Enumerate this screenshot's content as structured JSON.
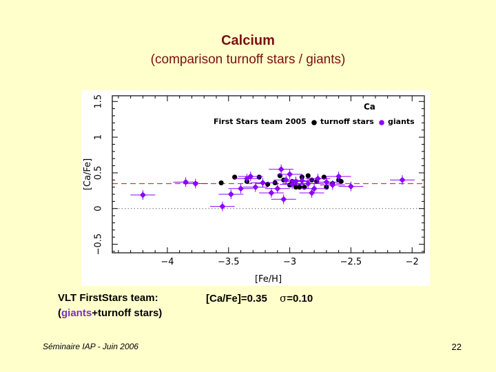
{
  "slide": {
    "title": "Calcium",
    "subtitle": "(comparison  turnoff stars / giants)",
    "footer_left": "Séminaire IAP -   Juin 2006",
    "page_number": "22"
  },
  "caption": {
    "line1_left": "VLT   FirstStars team:",
    "line1_right_a": "[Ca/Fe]=0.35",
    "sigma_symbol": "σ",
    "line1_right_b": "=0.10",
    "line2_open": "(",
    "line2_giants": "giants",
    "line2_rest": "+turnoff stars)"
  },
  "colors": {
    "background": "#FFFFCC",
    "title": "#7A1010",
    "giants": "#8B00FF",
    "turnoff": "#000000",
    "mean_line": "#E03030"
  },
  "chart_data": {
    "type": "scatter",
    "element_label": "Ca",
    "legend_title": "First Stars team 2005",
    "legend_placement": "top-right",
    "xlabel": "[Fe/H]",
    "ylabel": "[Ca/Fe]",
    "xlim": [
      -4.45,
      -1.9
    ],
    "ylim": [
      -0.62,
      1.58
    ],
    "xticks": [
      -4,
      -3.5,
      -3,
      -2.5,
      -2
    ],
    "xtick_labels": [
      "−4",
      "−3.5",
      "−3",
      "−2.5",
      "−2"
    ],
    "yticks": [
      -0.5,
      0,
      0.5,
      1,
      1.5
    ],
    "ytick_labels": [
      "−0.5",
      "0",
      "0.5",
      "1",
      "1.5"
    ],
    "mean_line": 0.35,
    "zero_line": 0,
    "series": [
      {
        "name": "turnoff stars",
        "color": "#000000",
        "points": [
          [
            -3.56,
            0.36
          ],
          [
            -3.45,
            0.44
          ],
          [
            -3.35,
            0.38
          ],
          [
            -3.25,
            0.44
          ],
          [
            -3.18,
            0.34
          ],
          [
            -3.12,
            0.36
          ],
          [
            -3.08,
            0.46
          ],
          [
            -3.05,
            0.4
          ],
          [
            -3.0,
            0.33
          ],
          [
            -2.98,
            0.38
          ],
          [
            -2.95,
            0.3
          ],
          [
            -2.92,
            0.3
          ],
          [
            -2.9,
            0.44
          ],
          [
            -2.88,
            0.3
          ],
          [
            -2.85,
            0.46
          ],
          [
            -2.82,
            0.4
          ],
          [
            -2.78,
            0.38
          ],
          [
            -2.72,
            0.44
          ],
          [
            -2.7,
            0.3
          ],
          [
            -2.65,
            0.35
          ],
          [
            -2.6,
            0.4
          ],
          [
            -2.58,
            0.38
          ]
        ]
      },
      {
        "name": "giants",
        "color": "#8B00FF",
        "points": [
          [
            -4.2,
            0.19
          ],
          [
            -3.85,
            0.37
          ],
          [
            -3.77,
            0.35
          ],
          [
            -3.55,
            0.03
          ],
          [
            -3.48,
            0.2
          ],
          [
            -3.4,
            0.28
          ],
          [
            -3.35,
            0.42
          ],
          [
            -3.32,
            0.45
          ],
          [
            -3.28,
            0.3
          ],
          [
            -3.22,
            0.36
          ],
          [
            -3.15,
            0.22
          ],
          [
            -3.1,
            0.28
          ],
          [
            -3.07,
            0.55
          ],
          [
            -3.05,
            0.13
          ],
          [
            -3.03,
            0.4
          ],
          [
            -3.0,
            0.48
          ],
          [
            -2.98,
            0.34
          ],
          [
            -2.95,
            0.38
          ],
          [
            -2.9,
            0.39
          ],
          [
            -2.85,
            0.35
          ],
          [
            -2.82,
            0.22
          ],
          [
            -2.8,
            0.28
          ],
          [
            -2.77,
            0.42
          ],
          [
            -2.7,
            0.37
          ],
          [
            -2.65,
            0.33
          ],
          [
            -2.6,
            0.45
          ],
          [
            -2.5,
            0.31
          ],
          [
            -2.08,
            0.4
          ]
        ]
      }
    ]
  }
}
